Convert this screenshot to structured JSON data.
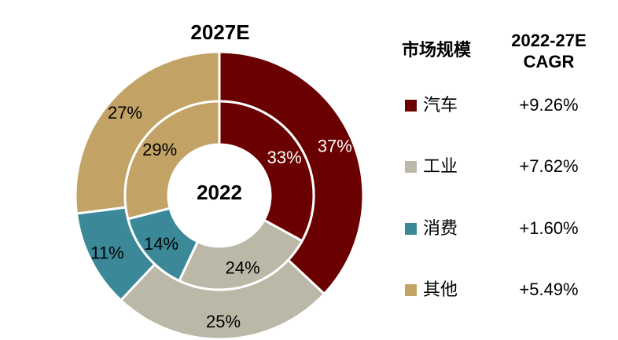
{
  "chart_data": {
    "type": "pie",
    "variant": "nested-donut",
    "title": "",
    "rings": [
      {
        "label": "2027E",
        "position": "outer",
        "values": [
          37,
          25,
          11,
          27
        ]
      },
      {
        "label": "2022",
        "position": "inner",
        "values": [
          33,
          24,
          14,
          29
        ]
      }
    ],
    "categories": [
      "汽车",
      "工业",
      "消费",
      "其他"
    ],
    "colors": [
      "#6b0000",
      "#bcb8a7",
      "#3b8899",
      "#c2a265"
    ],
    "legend": {
      "headers": [
        "市场规模",
        "2022-27E CAGR"
      ],
      "cagr": [
        "+9.26%",
        "+7.62%",
        "+1.60%",
        "+5.49%"
      ]
    }
  }
}
